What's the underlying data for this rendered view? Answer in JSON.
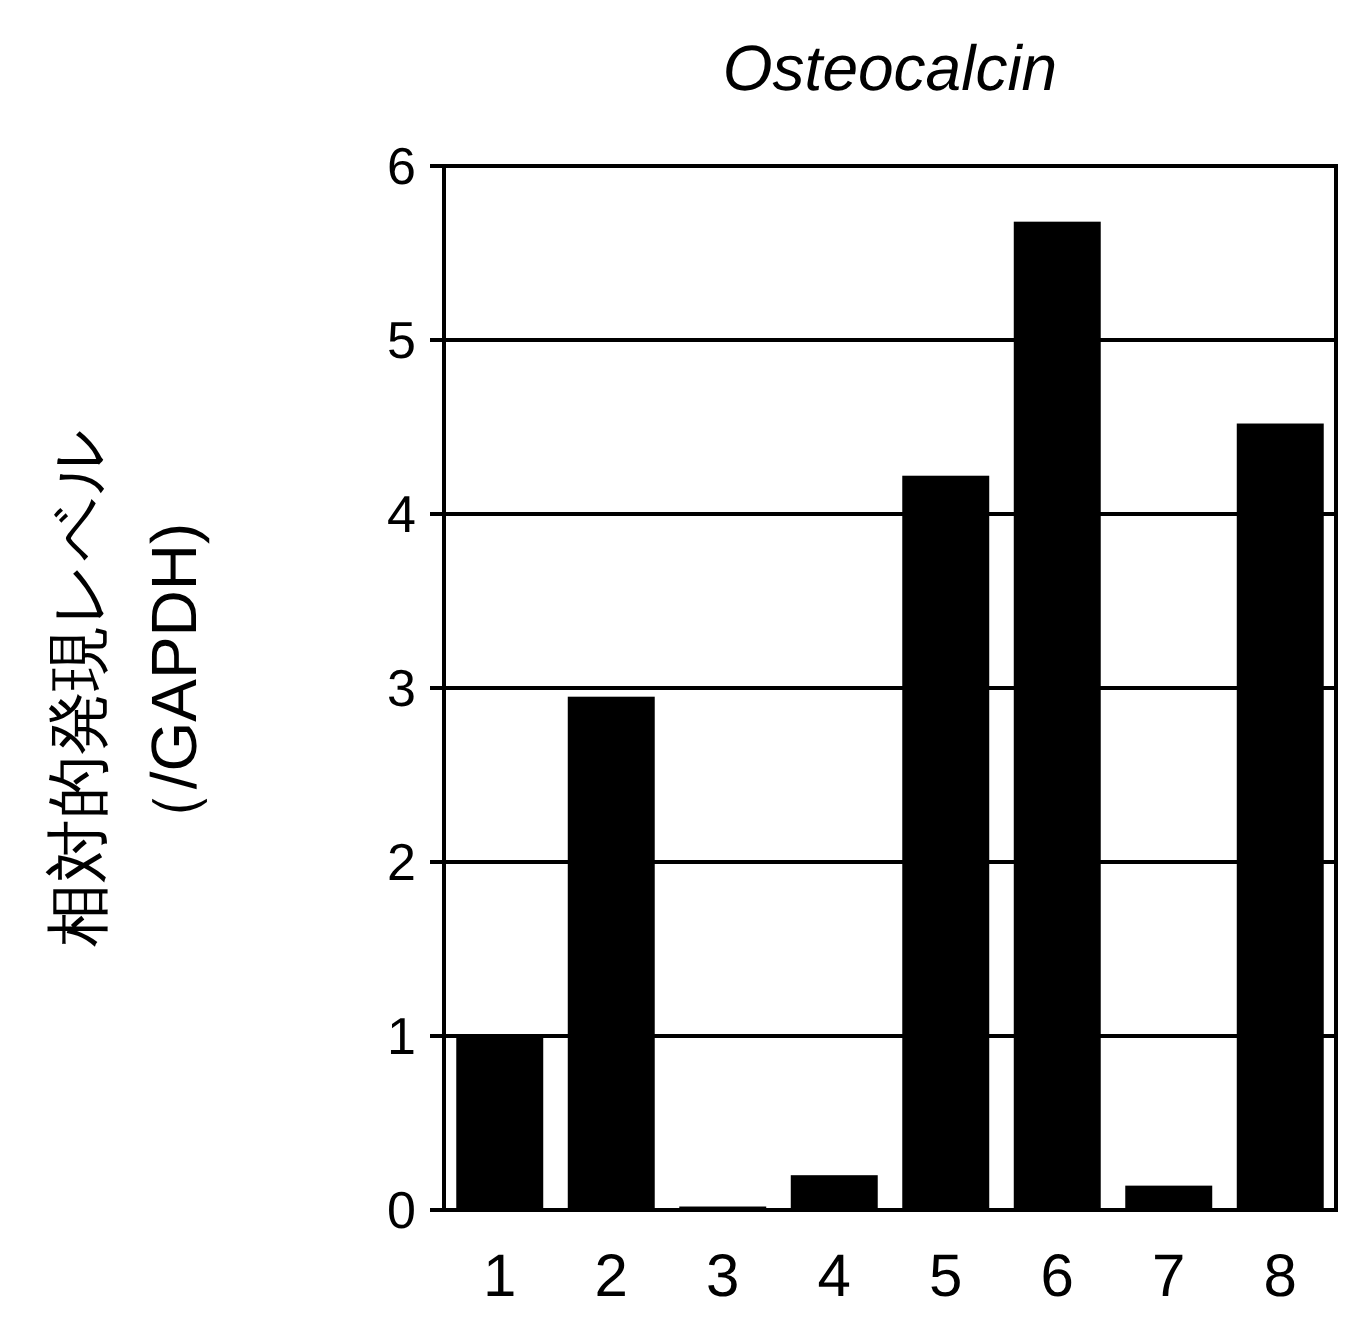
{
  "chart_data": {
    "type": "bar",
    "title": "*Osteocalcin*",
    "ylabel": "相対的発現レベル（/GAPDH)",
    "categories": [
      "1",
      "2",
      "3",
      "4",
      "5",
      "6",
      "7",
      "8"
    ],
    "values": [
      1.01,
      2.95,
      0.02,
      0.2,
      4.22,
      5.68,
      0.14,
      4.52
    ],
    "color": "#000000",
    "ylim": [
      0,
      6
    ],
    "yticks": [
      0,
      1,
      2,
      3,
      4,
      5,
      6
    ],
    "grid": "y"
  }
}
